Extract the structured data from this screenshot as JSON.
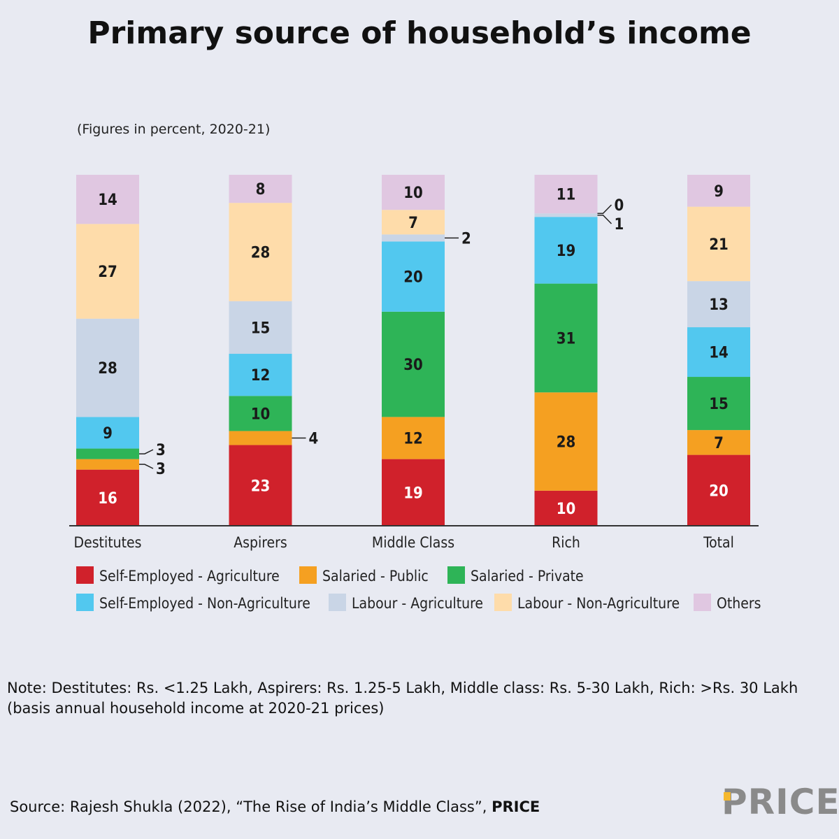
{
  "title": "Primary source of household’s income",
  "subtitle": "(Figures in percent, 2020-21)",
  "note_line1": "Note: Destitutes: Rs. <1.25 Lakh, Aspirers: Rs. 1.25-5 Lakh, Middle class: Rs. 5-30 Lakh, Rich: >Rs. 30 Lakh",
  "note_line2": "(basis annual household income at 2020-21 prices)",
  "source_text": "Source: Rajesh Shukla (2022), “The Rise of India’s Middle Class”, ",
  "source_bold": "PRICE",
  "logo": "PRICE",
  "chart_data": {
    "type": "bar",
    "stacked": true,
    "title": "Primary source of household’s income",
    "subtitle": "(Figures in percent, 2020-21)",
    "categories": [
      "Destitutes",
      "Aspirers",
      "Middle Class",
      "Rich",
      "Total"
    ],
    "ylim": [
      0,
      100
    ],
    "grid": false,
    "legend_position": "bottom",
    "series": [
      {
        "name": "Self-Employed - Agriculture",
        "color": "#d0212b",
        "values": [
          16,
          23,
          19,
          10,
          20
        ]
      },
      {
        "name": "Salaried - Public",
        "color": "#f5a021",
        "values": [
          3,
          4,
          12,
          28,
          7
        ]
      },
      {
        "name": "Salaried - Private",
        "color": "#2eb457",
        "values": [
          3,
          10,
          30,
          31,
          15
        ]
      },
      {
        "name": "Self-Employed - Non-Agriculture",
        "color": "#52c8ef",
        "values": [
          9,
          12,
          20,
          19,
          14
        ]
      },
      {
        "name": "Labour - Agriculture",
        "color": "#c9d5e6",
        "values": [
          28,
          15,
          2,
          1,
          13
        ]
      },
      {
        "name": "Labour - Non-Agriculture",
        "color": "#fedcaa",
        "values": [
          27,
          28,
          7,
          0,
          21
        ]
      },
      {
        "name": "Others",
        "color": "#e0c7e1",
        "values": [
          14,
          8,
          10,
          11,
          9
        ]
      }
    ]
  }
}
